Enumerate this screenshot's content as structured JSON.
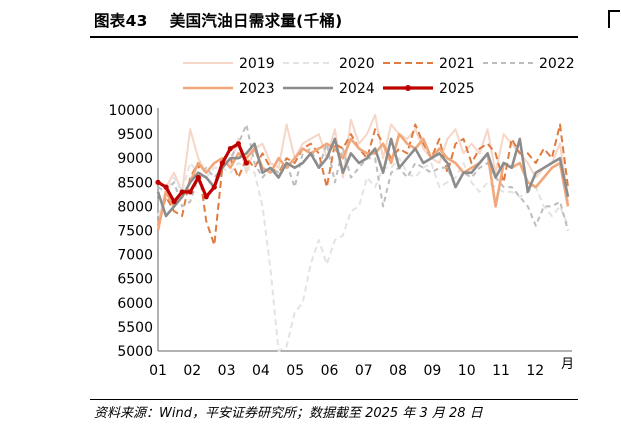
{
  "figure": {
    "number": "图表43",
    "title": "美国汽油日需求量(千桶)",
    "source": "资料来源：Wind，平安证券研究所；数据截至 2025 年 3 月 28 日"
  },
  "chart_data": {
    "type": "line",
    "xlabel": "月",
    "ylabel": "",
    "ylim": [
      5000,
      10000
    ],
    "yticks": [
      5000,
      5500,
      6000,
      6500,
      7000,
      7500,
      8000,
      8500,
      9000,
      9500,
      10000
    ],
    "month_labels": [
      "01",
      "02",
      "03",
      "04",
      "05",
      "06",
      "07",
      "08",
      "09",
      "10",
      "11",
      "12"
    ],
    "x_unit": "week",
    "x_range": [
      1,
      52
    ],
    "legend_position": "top",
    "grid": false,
    "series": [
      {
        "name": "2019",
        "color": "#f6d6c6",
        "dash": "solid",
        "width": 2,
        "values": [
          7600,
          8400,
          8700,
          8300,
          9600,
          9000,
          8700,
          8900,
          9000,
          8900,
          9400,
          8700,
          9200,
          9300,
          8900,
          8800,
          9700,
          9000,
          9300,
          9400,
          9500,
          9000,
          9600,
          8600,
          9800,
          9300,
          9500,
          9900,
          9000,
          9700,
          9500,
          9400,
          9600,
          9200,
          9000,
          8900,
          9400,
          9600,
          9100,
          9300,
          9100,
          9600,
          8700,
          9500,
          9300,
          9100,
          8900,
          8600,
          8800,
          8900,
          9300,
          8100
        ]
      },
      {
        "name": "2020",
        "color": "#e3e3e3",
        "dash": "6,4",
        "width": 2,
        "values": [
          7800,
          8300,
          8600,
          8300,
          8900,
          8700,
          8600,
          8800,
          8800,
          8700,
          8900,
          8800,
          8700,
          8000,
          6700,
          5000,
          5100,
          5800,
          6000,
          6800,
          7300,
          6800,
          7300,
          7400,
          7900,
          8000,
          8600,
          8400,
          8800,
          8800,
          9000,
          8700,
          8600,
          8800,
          8900,
          8400,
          8500,
          8600,
          8900,
          8500,
          8300,
          8500,
          8400,
          8300,
          8300,
          8200,
          8300,
          8400,
          8000,
          7800,
          8000,
          7600
        ]
      },
      {
        "name": "2021",
        "color": "#e07a3f",
        "dash": "7,4",
        "width": 2,
        "values": [
          7600,
          8200,
          7900,
          7800,
          8600,
          8900,
          7700,
          7200,
          8800,
          9000,
          8600,
          9000,
          8800,
          9100,
          8800,
          8700,
          9000,
          8900,
          9200,
          9300,
          9100,
          8400,
          9300,
          9200,
          9500,
          9200,
          9000,
          9600,
          9300,
          9000,
          9200,
          9100,
          9700,
          9300,
          9000,
          9400,
          8700,
          9300,
          9400,
          8900,
          9200,
          9300,
          9100,
          8500,
          9400,
          9100,
          9100,
          8900,
          9200,
          9000,
          9700,
          8400
        ]
      },
      {
        "name": "2022",
        "color": "#bdbdbd",
        "dash": "5,4",
        "width": 2,
        "values": [
          8400,
          8300,
          8500,
          8000,
          8100,
          8600,
          8800,
          8600,
          8800,
          9000,
          9300,
          9700,
          8900,
          8600,
          8800,
          8700,
          8900,
          8400,
          9100,
          9200,
          8800,
          9300,
          8500,
          9200,
          8600,
          8800,
          9000,
          9000,
          8000,
          8700,
          8800,
          8600,
          8900,
          8800,
          8700,
          8800,
          8800,
          8400,
          8700,
          8600,
          8800,
          8900,
          8600,
          8400,
          8400,
          8200,
          8000,
          7600,
          8000,
          8000,
          8100,
          7500
        ]
      },
      {
        "name": "2023",
        "color": "#f0a77a",
        "dash": "solid",
        "width": 2.6,
        "values": [
          7500,
          8300,
          8000,
          8200,
          8500,
          8900,
          8700,
          8900,
          9000,
          8800,
          9100,
          9000,
          9200,
          8800,
          8700,
          9000,
          8800,
          9000,
          9200,
          9100,
          9200,
          9300,
          9200,
          9000,
          9400,
          9200,
          9100,
          9100,
          9300,
          8900,
          9500,
          9300,
          9200,
          9400,
          9000,
          9200,
          9000,
          8900,
          8700,
          8800,
          8900,
          9100,
          8000,
          8900,
          8800,
          8900,
          8500,
          8400,
          8600,
          8800,
          8900,
          8000
        ]
      },
      {
        "name": "2024",
        "color": "#8c8c8c",
        "dash": "solid",
        "width": 2.6,
        "values": [
          8300,
          7800,
          8000,
          8200,
          8500,
          8700,
          8600,
          8400,
          8800,
          9000,
          9000,
          9100,
          9300,
          8700,
          8800,
          8600,
          8900,
          8800,
          8900,
          9100,
          8800,
          9000,
          9400,
          8700,
          9100,
          8900,
          9000,
          9200,
          8700,
          9400,
          8800,
          9000,
          9200,
          8900,
          9000,
          9100,
          8900,
          8400,
          8700,
          8700,
          8900,
          9100,
          8600,
          8900,
          8800,
          9400,
          8300,
          8700,
          8800,
          8900,
          9000,
          8200
        ]
      },
      {
        "name": "2025",
        "color": "#c00000",
        "dash": "solid",
        "width": 3.2,
        "values": [
          8500,
          8400,
          8100,
          8300,
          8300,
          8600,
          8200,
          8400,
          8900,
          9200,
          9300,
          8900
        ]
      }
    ]
  }
}
